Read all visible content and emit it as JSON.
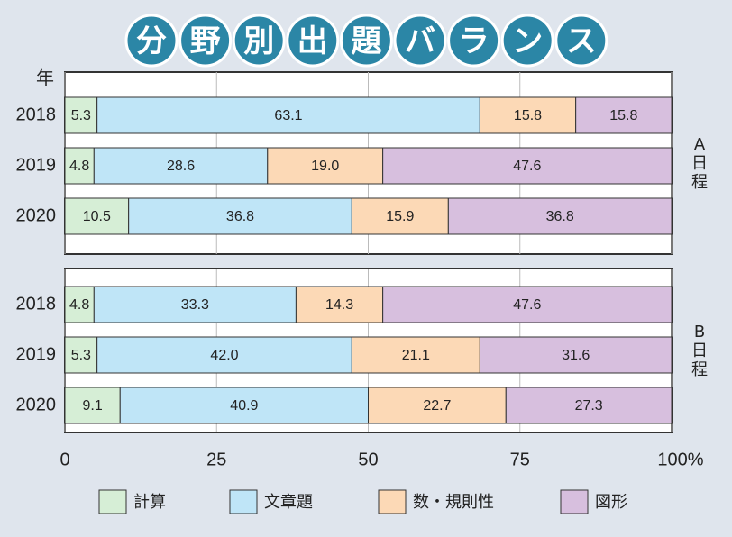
{
  "chart_data": {
    "type": "bar",
    "orientation": "horizontal",
    "stacked": true,
    "title": "分野別出題バランス",
    "y_label": "年",
    "xlim": [
      0,
      100
    ],
    "xticks": [
      0,
      25,
      50,
      75,
      {
        "value": 100,
        "label": "100%"
      }
    ],
    "grid": true,
    "legend_position": "bottom",
    "series": [
      {
        "name": "計算",
        "color": "#d6eed6"
      },
      {
        "name": "文章題",
        "color": "#bfe5f7"
      },
      {
        "name": "数・規則性",
        "color": "#fcd9b6"
      },
      {
        "name": "図形",
        "color": "#d7bfde"
      }
    ],
    "panels": [
      {
        "label": "A日程",
        "categories": [
          "2018",
          "2019",
          "2020"
        ],
        "values": [
          [
            5.3,
            4.8,
            10.5
          ],
          [
            63.1,
            28.6,
            36.8
          ],
          [
            15.8,
            19.0,
            15.9
          ],
          [
            15.8,
            47.6,
            36.8
          ]
        ],
        "value_labels": [
          [
            "5.3",
            "4.8",
            "10.5"
          ],
          [
            "63.1",
            "28.6",
            "36.8"
          ],
          [
            "15.8",
            "19.0",
            "15.9"
          ],
          [
            "15.8",
            "47.6",
            "36.8"
          ]
        ]
      },
      {
        "label": "B日程",
        "categories": [
          "2018",
          "2019",
          "2020"
        ],
        "values": [
          [
            4.8,
            5.3,
            9.1
          ],
          [
            33.3,
            42.0,
            40.9
          ],
          [
            14.3,
            21.1,
            22.7
          ],
          [
            47.6,
            31.6,
            27.3
          ]
        ],
        "value_labels": [
          [
            "4.8",
            "5.3",
            "9.1"
          ],
          [
            "33.3",
            "42.0",
            "40.9"
          ],
          [
            "14.3",
            "21.1",
            "22.7"
          ],
          [
            "47.6",
            "31.6",
            "27.3"
          ]
        ]
      }
    ]
  }
}
